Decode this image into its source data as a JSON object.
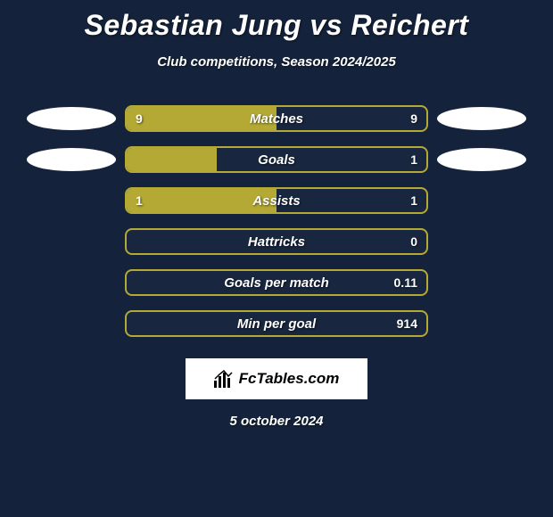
{
  "header": {
    "title": "Sebastian Jung vs Reichert",
    "subtitle": "Club competitions, Season 2024/2025"
  },
  "styling": {
    "background_color": "#14233b",
    "bar_color_left": "#b3a934",
    "bar_color_right": "#18273f",
    "bar_border_color": "#b3a934",
    "ellipse_left_color": "#ffffff",
    "ellipse_right_color": "#ffffff",
    "text_color": "#ffffff",
    "title_fontsize": 32,
    "subtitle_fontsize": 15,
    "bar_track_width": 340,
    "bar_track_height": 30,
    "ellipse_width": 100,
    "ellipse_height": 26
  },
  "rows": [
    {
      "label": "Matches",
      "left_value": "9",
      "right_value": "9",
      "left_fill_pct": 50,
      "right_fill_pct": 50,
      "show_ellipse": true
    },
    {
      "label": "Goals",
      "left_value": "",
      "right_value": "1",
      "left_fill_pct": 30,
      "right_fill_pct": 70,
      "show_ellipse": true
    },
    {
      "label": "Assists",
      "left_value": "1",
      "right_value": "1",
      "left_fill_pct": 50,
      "right_fill_pct": 50,
      "show_ellipse": false
    },
    {
      "label": "Hattricks",
      "left_value": "",
      "right_value": "0",
      "left_fill_pct": 0,
      "right_fill_pct": 100,
      "show_ellipse": false
    },
    {
      "label": "Goals per match",
      "left_value": "",
      "right_value": "0.11",
      "left_fill_pct": 0,
      "right_fill_pct": 100,
      "show_ellipse": false
    },
    {
      "label": "Min per goal",
      "left_value": "",
      "right_value": "914",
      "left_fill_pct": 0,
      "right_fill_pct": 100,
      "show_ellipse": false
    }
  ],
  "logo": {
    "text": "FcTables.com"
  },
  "footer": {
    "date": "5 october 2024"
  }
}
